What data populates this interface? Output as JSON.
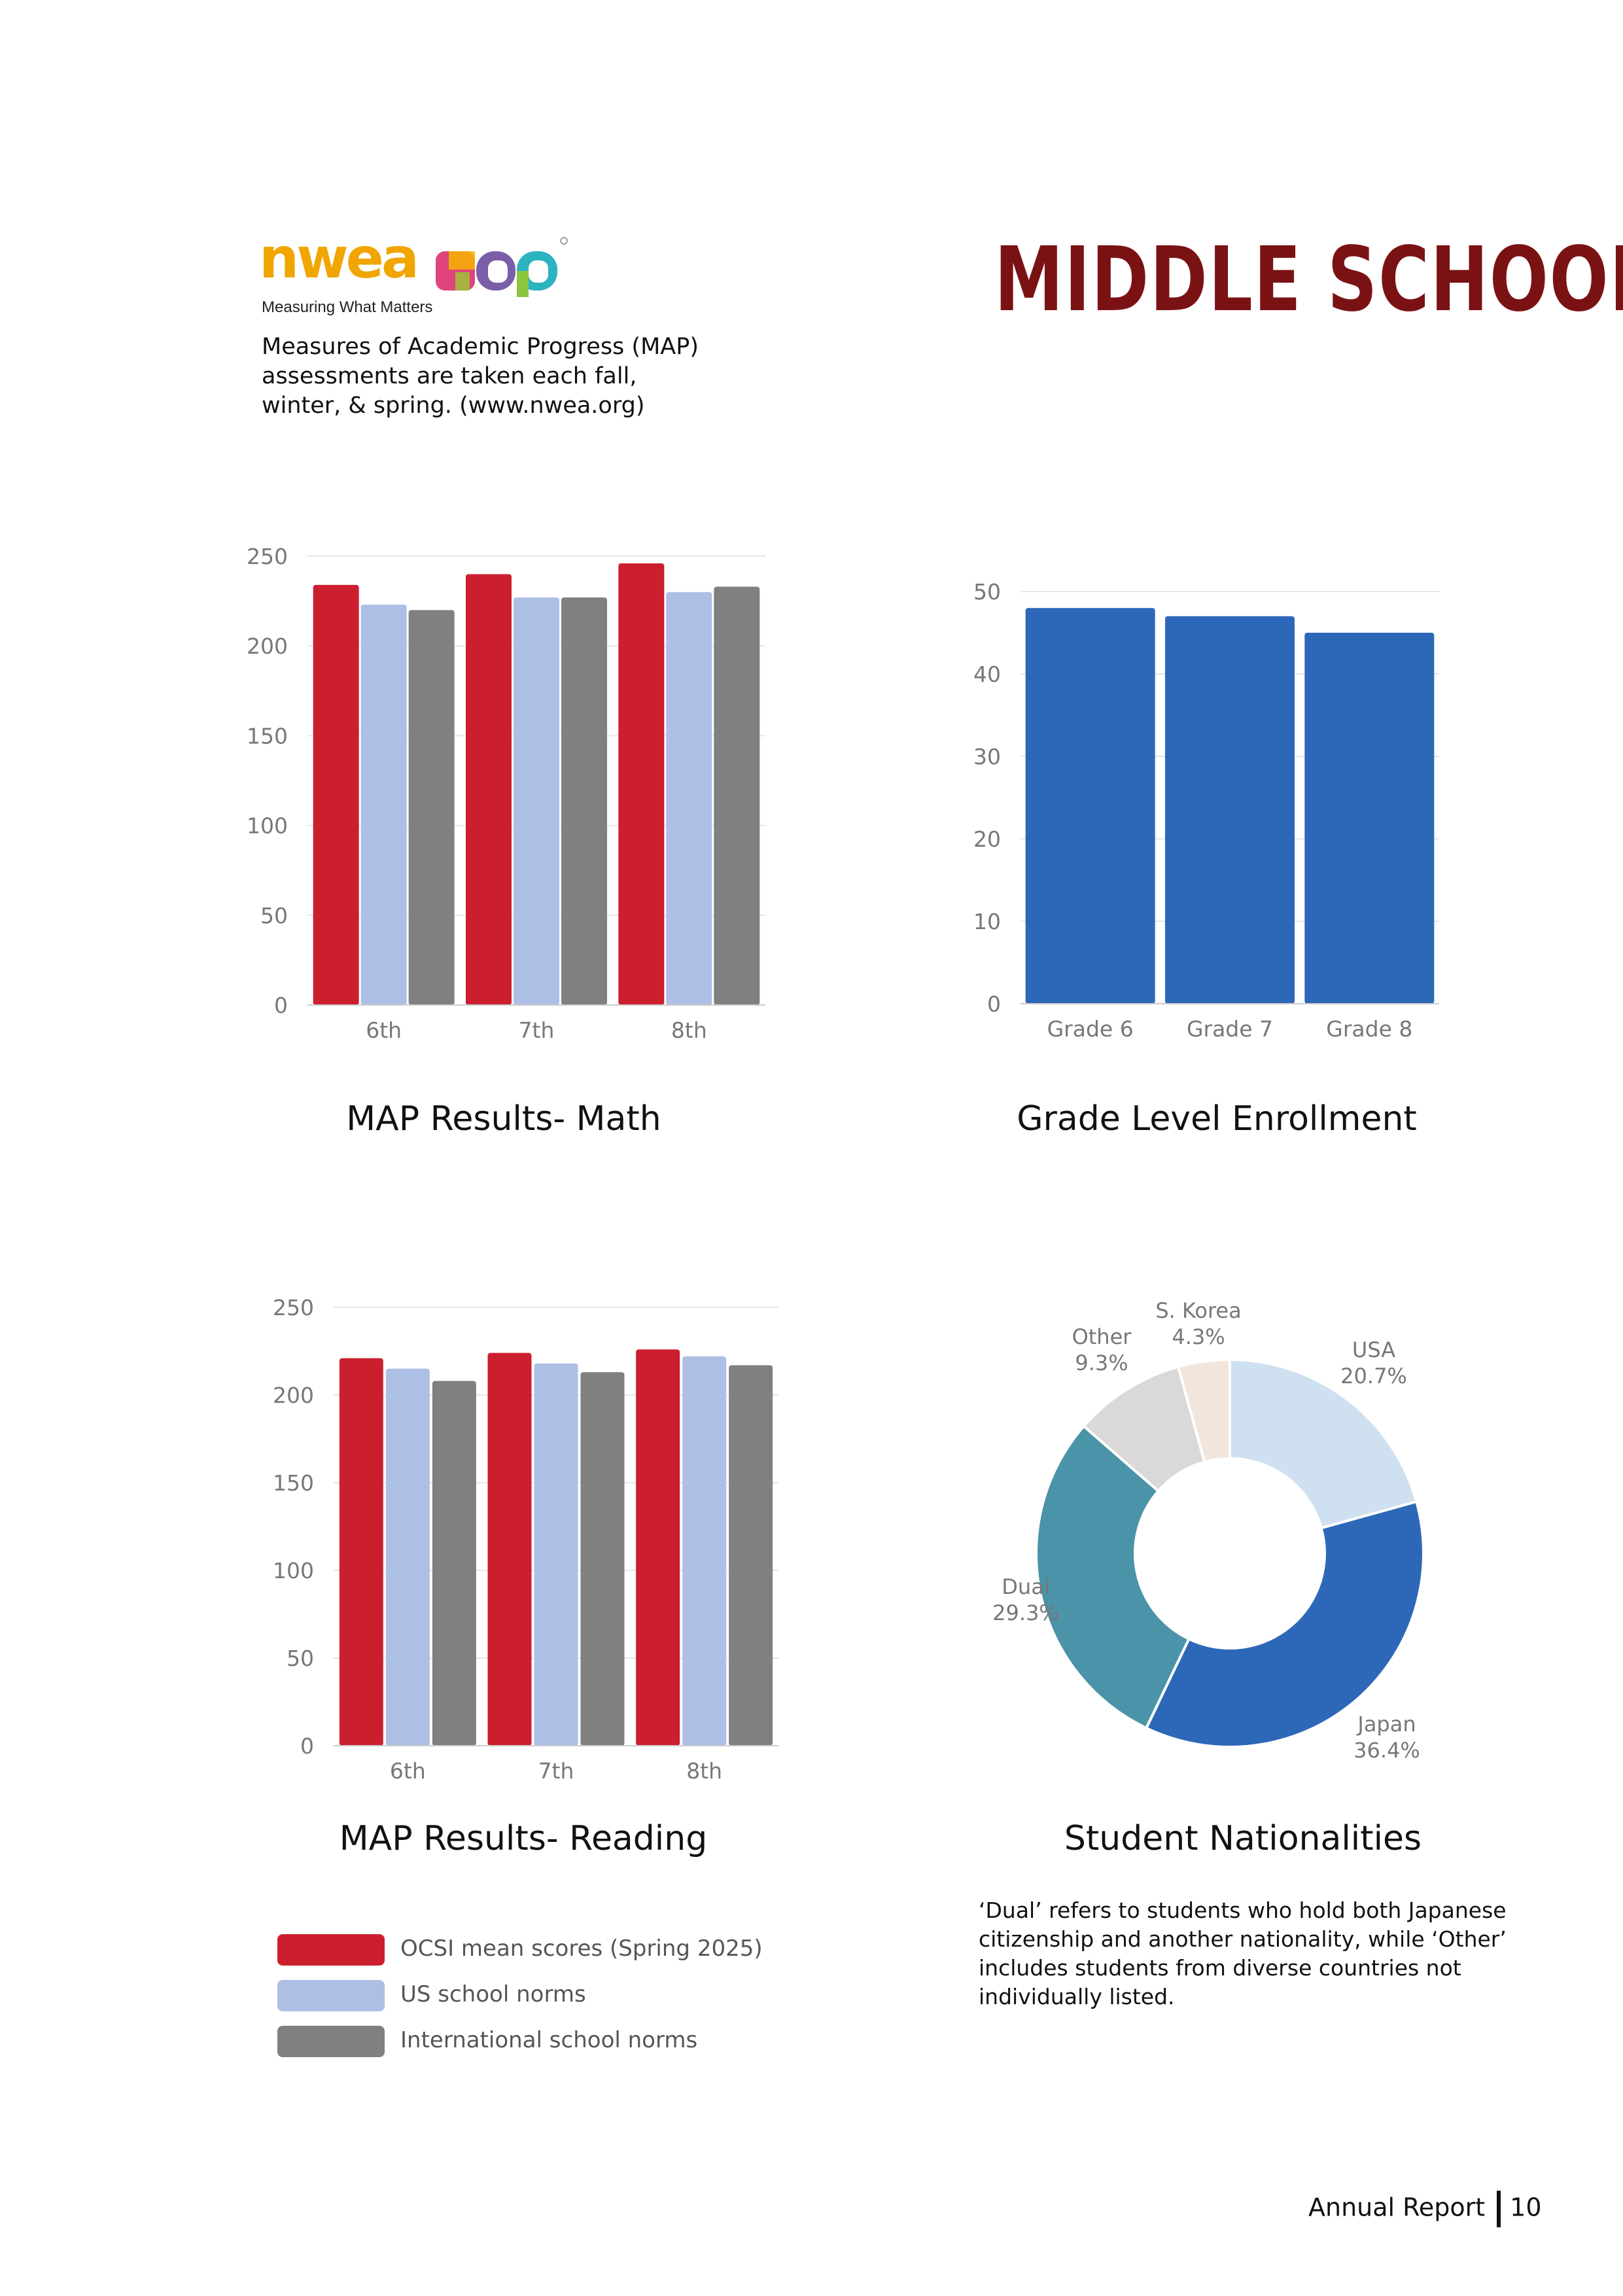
{
  "header": {
    "logo_brand": "nwea",
    "logo_map": "map",
    "logo_tagline": "Measuring What Matters",
    "intro_text": "Measures of Academic Progress (MAP) assessments are taken each fall, winter, & spring. (www.nwea.org)",
    "title": "MIDDLE SCHOOL"
  },
  "captions": {
    "math": "MAP Results- Math",
    "enrollment": "Grade Level Enrollment",
    "reading": "MAP Results- Reading",
    "nationalities": "Student Nationalities"
  },
  "legend": {
    "items": [
      {
        "label": "OCSI mean scores (Spring 2025)",
        "color": "#cc1f2e"
      },
      {
        "label": "US school norms",
        "color": "#aebfe6"
      },
      {
        "label": "International school norms",
        "color": "#808080"
      }
    ]
  },
  "note": "‘Dual’ refers to students who hold both Japanese citizenship and another nationality, while ‘Other’ includes students from diverse countries not individually listed.",
  "footer": {
    "label": "Annual Report",
    "page": "10"
  },
  "chart_data": [
    {
      "id": "math",
      "type": "bar",
      "title": "MAP Results- Math",
      "categories": [
        "6th",
        "7th",
        "8th"
      ],
      "series": [
        {
          "name": "OCSI mean scores (Spring 2025)",
          "color": "#cc1f2e",
          "values": [
            234,
            240,
            246
          ]
        },
        {
          "name": "US school norms",
          "color": "#aebfe6",
          "values": [
            223,
            227,
            230
          ]
        },
        {
          "name": "International school norms",
          "color": "#808080",
          "values": [
            220,
            227,
            233
          ]
        }
      ],
      "ylim": [
        0,
        250
      ],
      "yticks": [
        0,
        50,
        100,
        150,
        200,
        250
      ],
      "grid": true
    },
    {
      "id": "enrollment",
      "type": "bar",
      "title": "Grade Level Enrollment",
      "categories": [
        "Grade 6",
        "Grade 7",
        "Grade 8"
      ],
      "series": [
        {
          "color": "#2d68b8",
          "values": [
            48,
            47,
            45
          ]
        }
      ],
      "ylim": [
        0,
        50
      ],
      "yticks": [
        0,
        10,
        20,
        30,
        40,
        50
      ],
      "grid": true
    },
    {
      "id": "reading",
      "type": "bar",
      "title": "MAP Results- Reading",
      "categories": [
        "6th",
        "7th",
        "8th"
      ],
      "series": [
        {
          "name": "OCSI mean scores (Spring 2025)",
          "color": "#cc1f2e",
          "values": [
            221,
            224,
            226
          ]
        },
        {
          "name": "US school norms",
          "color": "#aebfe6",
          "values": [
            215,
            218,
            222
          ]
        },
        {
          "name": "International school norms",
          "color": "#808080",
          "values": [
            208,
            213,
            217
          ]
        }
      ],
      "ylim": [
        0,
        250
      ],
      "yticks": [
        0,
        50,
        100,
        150,
        200,
        250
      ],
      "grid": true
    },
    {
      "id": "nationalities",
      "type": "pie",
      "donut": true,
      "title": "Student Nationalities",
      "slices": [
        {
          "label": "USA",
          "value": 20.7,
          "pct": "20.7%",
          "color": "#cfe0f0"
        },
        {
          "label": "Japan",
          "value": 36.4,
          "pct": "36.4%",
          "color": "#2d68b8"
        },
        {
          "label": "Dual",
          "value": 29.3,
          "pct": "29.3%",
          "color": "#4a93a8"
        },
        {
          "label": "Other",
          "value": 9.3,
          "pct": "9.3%",
          "color": "#d9d9d9"
        },
        {
          "label": "S. Korea",
          "value": 4.3,
          "pct": "4.3%",
          "color": "#f2e6dc"
        }
      ]
    }
  ]
}
